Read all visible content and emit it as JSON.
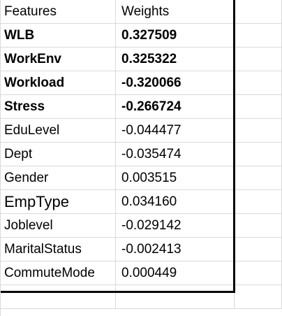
{
  "sheet": {
    "headers": {
      "features": "Features",
      "weights": "Weights"
    },
    "rows": [
      {
        "feature": "WLB",
        "weight": "0.327509",
        "bold": true
      },
      {
        "feature": "WorkEnv",
        "weight": "0.325322",
        "bold": true
      },
      {
        "feature": "Workload",
        "weight": "-0.320066",
        "bold": true
      },
      {
        "feature": "Stress",
        "weight": "-0.266724",
        "bold": true
      },
      {
        "feature": "EduLevel",
        "weight": "-0.044477",
        "bold": false
      },
      {
        "feature": "Dept",
        "weight": "-0.035474",
        "bold": false
      },
      {
        "feature": "Gender",
        "weight": "0.003515",
        "bold": false
      },
      {
        "feature": "EmpType",
        "weight": "0.034160",
        "bold": false,
        "large": true
      },
      {
        "feature": "Joblevel",
        "weight": "-0.029142",
        "bold": false
      },
      {
        "feature": "MaritalStatus",
        "weight": "-0.002413",
        "bold": false
      },
      {
        "feature": "CommuteMode",
        "weight": "0.000449",
        "bold": false
      }
    ],
    "empty_rows": 1
  }
}
